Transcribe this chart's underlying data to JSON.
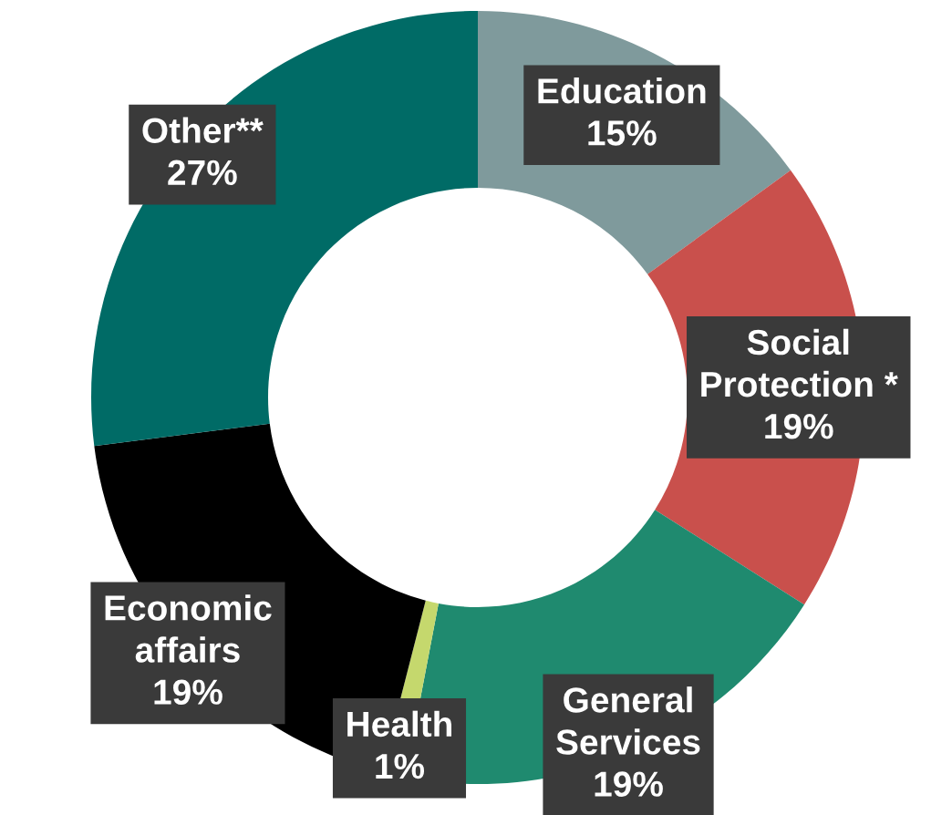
{
  "chart_data": {
    "type": "donut",
    "categories": [
      "Education",
      "Social Protection *",
      "General Services",
      "Health",
      "Economic affairs",
      "Other**"
    ],
    "values": [
      15,
      19,
      19,
      1,
      19,
      27
    ],
    "colors": [
      "#7f9a9c",
      "#c9504c",
      "#1f8a6f",
      "#c5d86d",
      "#000000",
      "#006b66"
    ],
    "value_labels": [
      "15%",
      "19%",
      "19%",
      "1%",
      "19%",
      "27%"
    ],
    "legend": false
  }
}
